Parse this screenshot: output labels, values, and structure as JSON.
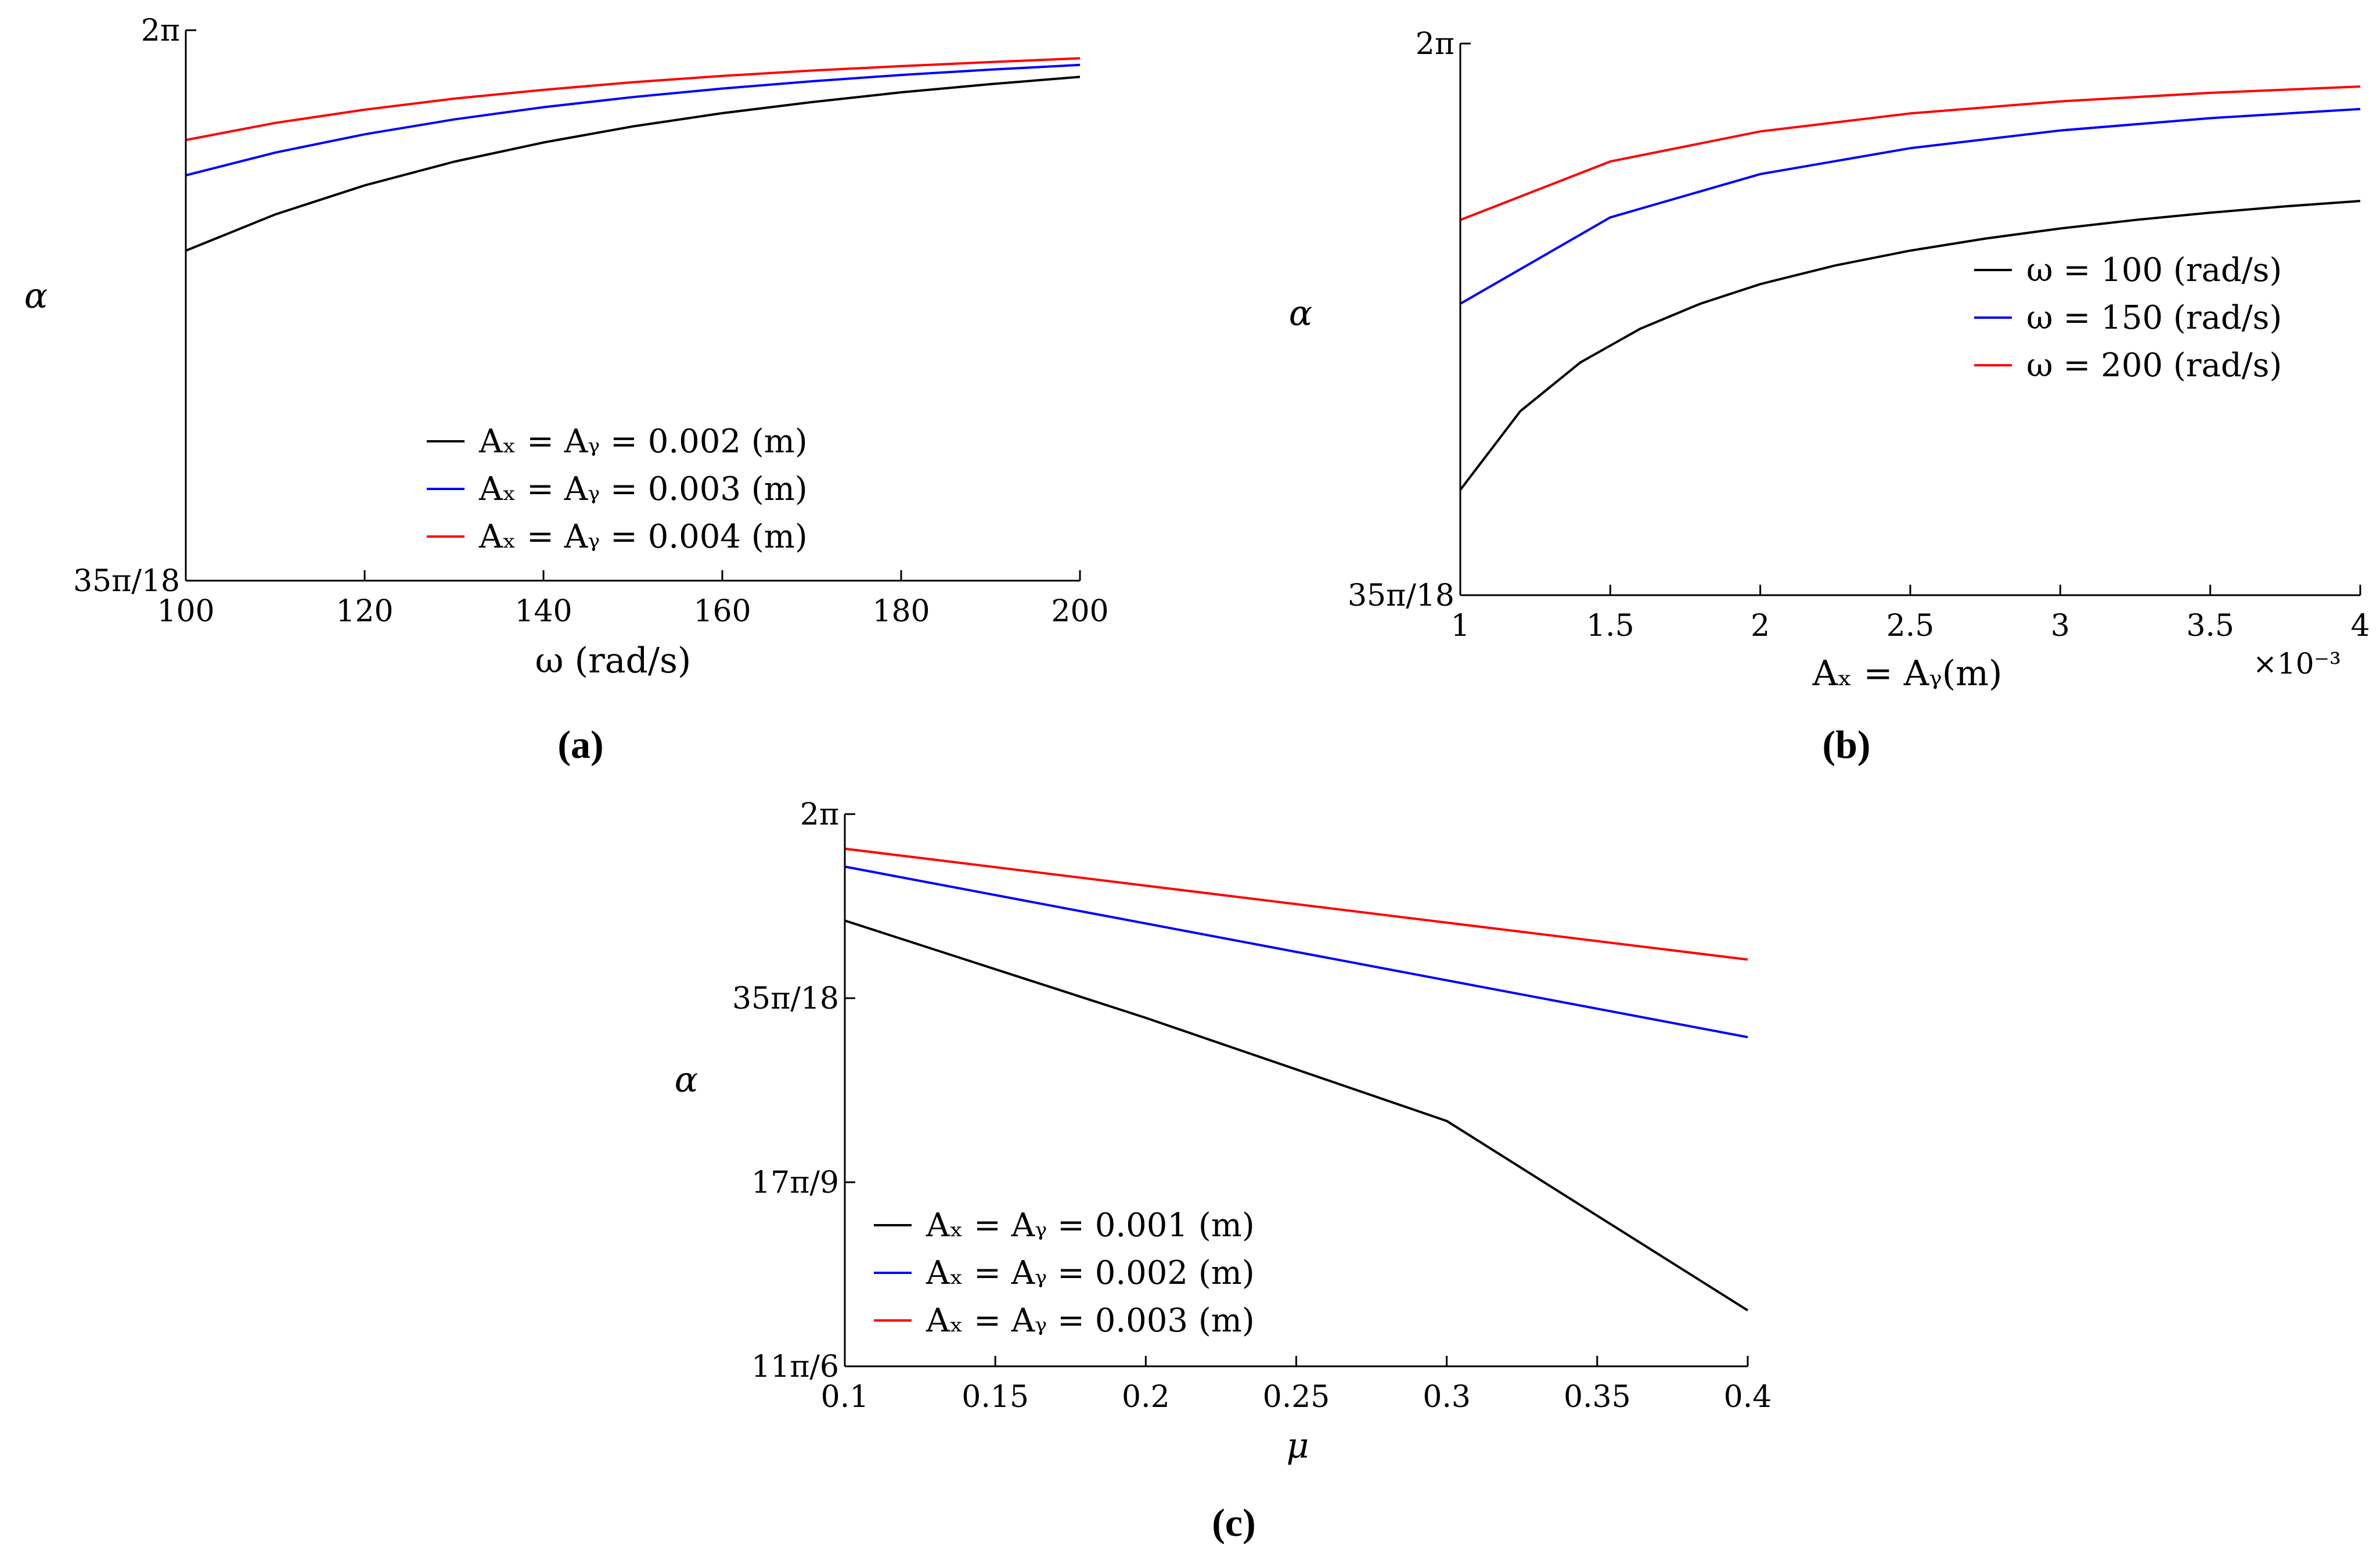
{
  "chart_data": [
    {
      "panel": "(a)",
      "type": "line",
      "xlabel": "ω (rad/s)",
      "ylabel": "α",
      "xlim": [
        100,
        200
      ],
      "ylim": [
        6.1087,
        6.2832
      ],
      "xticks": [
        100,
        120,
        140,
        160,
        180,
        200
      ],
      "xtick_labels": [
        "100",
        "120",
        "140",
        "160",
        "180",
        "200"
      ],
      "yticks": [
        6.1087,
        6.2832
      ],
      "ytick_labels": [
        "35π/18",
        "2π"
      ],
      "legend_position": "lower-center",
      "series": [
        {
          "name": "Aₓ = Aᵧ = 0.002 (m)",
          "color": "#000000",
          "x": [
            100,
            110,
            120,
            130,
            140,
            150,
            160,
            170,
            180,
            190,
            200
          ],
          "y": [
            6.2133,
            6.2248,
            6.234,
            6.2415,
            6.2476,
            6.2527,
            6.2569,
            6.2604,
            6.2635,
            6.2661,
            6.2684
          ]
        },
        {
          "name": "Aₓ = Aᵧ = 0.003 (m)",
          "color": "#0000ff",
          "x": [
            100,
            110,
            120,
            130,
            140,
            150,
            160,
            170,
            180,
            190,
            200
          ],
          "y": [
            6.2372,
            6.2444,
            6.2502,
            6.2549,
            6.2588,
            6.262,
            6.2647,
            6.267,
            6.269,
            6.2707,
            6.2722
          ]
        },
        {
          "name": "Aₓ = Aᵧ = 0.004 (m)",
          "color": "#ff0000",
          "x": [
            100,
            110,
            120,
            130,
            140,
            150,
            160,
            170,
            180,
            190,
            200
          ],
          "y": [
            6.2484,
            6.2538,
            6.258,
            6.2615,
            6.2643,
            6.2667,
            6.2687,
            6.2704,
            6.2718,
            6.2731,
            6.2743
          ]
        }
      ]
    },
    {
      "panel": "(b)",
      "type": "line",
      "xlabel": "Aₓ = Aᵧ(m)",
      "x_exponent": "×10⁻³",
      "ylabel": "α",
      "xlim": [
        1,
        4
      ],
      "ylim": [
        6.1087,
        6.2832
      ],
      "xticks": [
        1,
        1.5,
        2,
        2.5,
        3,
        3.5,
        4
      ],
      "xtick_labels": [
        "1",
        "1.5",
        "2",
        "2.5",
        "3",
        "3.5",
        "4"
      ],
      "yticks": [
        6.1087,
        6.2832
      ],
      "ytick_labels": [
        "35π/18",
        "2π"
      ],
      "legend_position": "upper-right",
      "series": [
        {
          "name": "ω = 100 (rad/s)",
          "color": "#000000",
          "x": [
            1,
            1.2,
            1.4,
            1.6,
            1.8,
            2,
            2.25,
            2.5,
            2.75,
            3,
            3.25,
            3.5,
            3.75,
            4
          ],
          "y": [
            6.142,
            6.1669,
            6.1823,
            6.193,
            6.2009,
            6.2071,
            6.213,
            6.2177,
            6.2215,
            6.2247,
            6.2274,
            6.2297,
            6.2317,
            6.2334
          ]
        },
        {
          "name": "ω = 150 (rad/s)",
          "color": "#0000ff",
          "x": [
            1,
            1.5,
            2,
            2.5,
            3,
            3.5,
            4
          ],
          "y": [
            6.2009,
            6.2282,
            6.2419,
            6.2501,
            6.2557,
            6.2596,
            6.2625
          ]
        },
        {
          "name": "ω = 200 (rad/s)",
          "color": "#ff0000",
          "x": [
            1,
            1.5,
            2,
            2.5,
            3,
            3.5,
            4
          ],
          "y": [
            6.2274,
            6.2459,
            6.2554,
            6.2611,
            6.2649,
            6.2676,
            6.2696
          ]
        }
      ]
    },
    {
      "panel": "(c)",
      "type": "line",
      "xlabel": "μ",
      "ylabel": "α",
      "xlim": [
        0.1,
        0.4
      ],
      "ylim": [
        5.7596,
        6.2832
      ],
      "xticks": [
        0.1,
        0.15,
        0.2,
        0.25,
        0.3,
        0.35,
        0.4
      ],
      "xtick_labels": [
        "0.1",
        "0.15",
        "0.2",
        "0.25",
        "0.3",
        "0.35",
        "0.4"
      ],
      "yticks": [
        5.7596,
        5.9341,
        6.1087,
        6.2832
      ],
      "ytick_labels": [
        "11π/6",
        "17π/9",
        "35π/18",
        "2π"
      ],
      "legend_position": "lower-left",
      "series": [
        {
          "name": "Aₓ = Aᵧ = 0.001 (m)",
          "color": "#000000",
          "x": [
            0.1,
            0.2,
            0.3,
            0.4
          ],
          "y": [
            6.1822,
            6.09,
            5.9922,
            5.8126
          ]
        },
        {
          "name": "Aₓ = Aᵧ = 0.002 (m)",
          "color": "#0000ff",
          "x": [
            0.1,
            0.4
          ],
          "y": [
            6.2334,
            6.0717
          ]
        },
        {
          "name": "Aₓ = Aᵧ = 0.003 (m)",
          "color": "#ff0000",
          "x": [
            0.1,
            0.4
          ],
          "y": [
            6.2504,
            6.1453
          ]
        }
      ]
    }
  ]
}
